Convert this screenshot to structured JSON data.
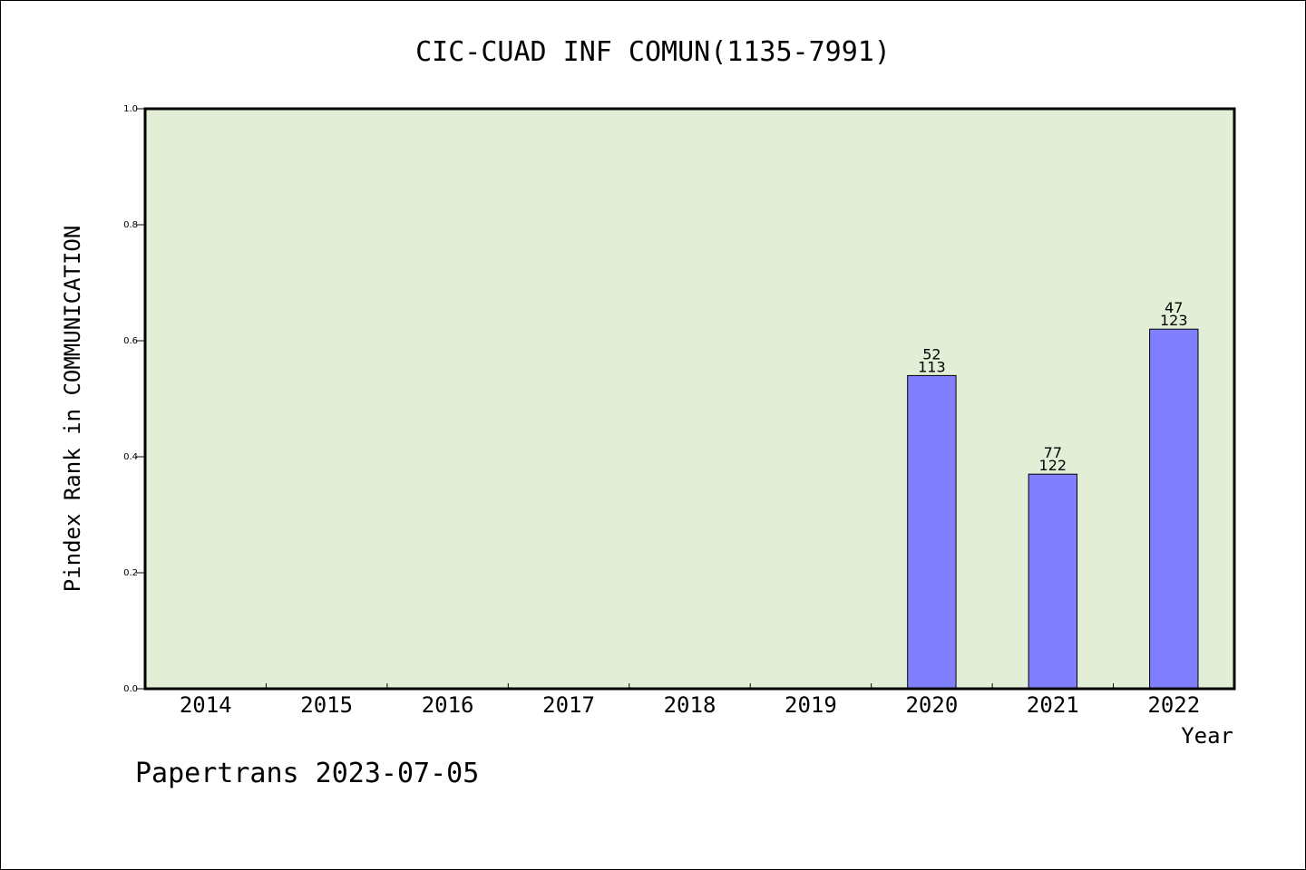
{
  "chart_data": {
    "type": "bar",
    "title": "CIC-CUAD INF COMUN(1135-7991)",
    "xlabel": "Year",
    "ylabel": "Pindex Rank in COMMUNICATION",
    "categories": [
      "2014",
      "2015",
      "2016",
      "2017",
      "2018",
      "2019",
      "2020",
      "2021",
      "2022"
    ],
    "values": [
      null,
      null,
      null,
      null,
      null,
      null,
      0.54,
      0.37,
      0.62
    ],
    "bar_labels": [
      null,
      null,
      null,
      null,
      null,
      null,
      {
        "top": "52",
        "bottom": "113"
      },
      {
        "top": "77",
        "bottom": "122"
      },
      {
        "top": "47",
        "bottom": "123"
      }
    ],
    "ylim": [
      0,
      1.0
    ],
    "yticks": [
      "0.0",
      "0.2",
      "0.4",
      "0.6",
      "0.8",
      "1.0"
    ],
    "grid": false,
    "colors": {
      "plot_background": "#e2efd6",
      "bar_fill": "#8080ff",
      "bar_stroke": "#000000",
      "axis": "#000000"
    }
  },
  "footer": {
    "watermark": "Papertrans 2023-07-05"
  }
}
